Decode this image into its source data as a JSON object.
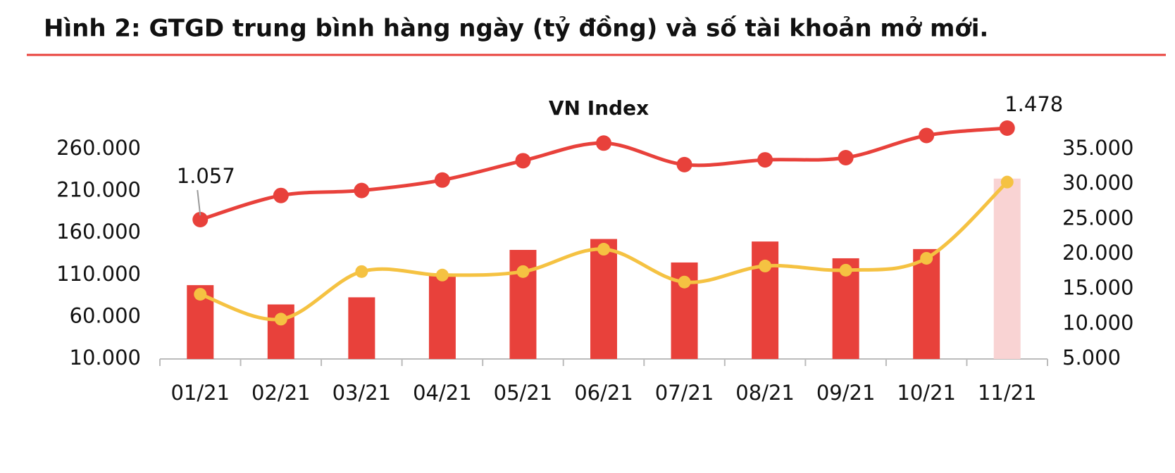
{
  "chart_data": {
    "type": "combo",
    "title": "Hình 2: GTGD trung bình hàng ngày (tỷ đồng) và số tài khoản mở mới.",
    "categories": [
      "01/21",
      "02/21",
      "03/21",
      "04/21",
      "05/21",
      "06/21",
      "07/21",
      "08/21",
      "09/21",
      "10/21",
      "11/21"
    ],
    "series": [
      {
        "type": "bar",
        "color": "#e8413b",
        "colors": [
          "#e8413b",
          "#e8413b",
          "#e8413b",
          "#e8413b",
          "#e8413b",
          "#e8413b",
          "#e8413b",
          "#e8413b",
          "#e8413b",
          "#e8413b",
          "#f9d3d3"
        ],
        "values": [
          98000,
          75000,
          83500,
          111000,
          140000,
          153000,
          125000,
          150000,
          130000,
          141000,
          225000
        ]
      },
      {
        "type": "line",
        "axis": "y2",
        "color": "#f5c242",
        "values": [
          14250,
          10700,
          17500,
          17000,
          17500,
          20700,
          16000,
          18300,
          17700,
          19400,
          30300
        ]
      },
      {
        "type": "line",
        "axis": "y3",
        "name": "VN Index",
        "color": "#e8413b",
        "values": [
          1057,
          1168,
          1191,
          1239,
          1328,
          1409,
          1310,
          1332,
          1342,
          1444,
          1478
        ],
        "value_labels": [
          "1.057",
          null,
          null,
          null,
          null,
          null,
          null,
          null,
          null,
          null,
          "1.478"
        ]
      }
    ],
    "ylim": [
      10000,
      260000
    ],
    "yticks": [
      {
        "value": 10000,
        "label": "10.000"
      },
      {
        "value": 60000,
        "label": "60.000"
      },
      {
        "value": 110000,
        "label": "110.000"
      },
      {
        "value": 160000,
        "label": "160.000"
      },
      {
        "value": 210000,
        "label": "210.000"
      },
      {
        "value": 260000,
        "label": "260.000"
      }
    ],
    "y2lim": [
      5000,
      35000
    ],
    "y2ticks": [
      {
        "value": 5000,
        "label": "5.000"
      },
      {
        "value": 10000,
        "label": "10.000"
      },
      {
        "value": 15000,
        "label": "15.000"
      },
      {
        "value": 20000,
        "label": "20.000"
      },
      {
        "value": 25000,
        "label": "25.000"
      },
      {
        "value": 30000,
        "label": "30.000"
      },
      {
        "value": 35000,
        "label": "35.000"
      }
    ],
    "grid": false
  }
}
